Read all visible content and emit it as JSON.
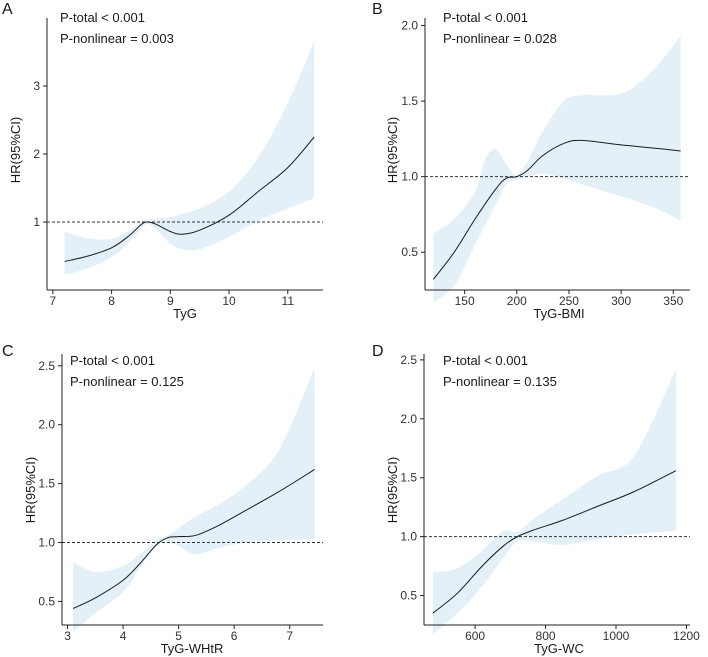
{
  "colors": {
    "band": "#e3f0f8",
    "line": "#1a1a1a",
    "axis": "#222222",
    "text": "#1a1a1a"
  },
  "chart_data": [
    {
      "panel": "A",
      "type": "line",
      "xlabel": "TyG",
      "ylabel": "HR(95%CI)",
      "annotations": [
        "P-total < 0.001",
        "P-nonlinear = 0.003"
      ],
      "x_ticks": [
        7,
        8,
        9,
        10,
        11
      ],
      "y_ticks": [
        1,
        2,
        3
      ],
      "xlim": [
        6.9,
        11.6
      ],
      "ylim": [
        0.0,
        4.0
      ],
      "reference_line": 1,
      "curve": [
        [
          7.2,
          0.42
        ],
        [
          7.6,
          0.5
        ],
        [
          8.0,
          0.62
        ],
        [
          8.3,
          0.8
        ],
        [
          8.5,
          0.96
        ],
        [
          8.6,
          1.0
        ],
        [
          8.75,
          0.97
        ],
        [
          9.0,
          0.86
        ],
        [
          9.2,
          0.82
        ],
        [
          9.5,
          0.88
        ],
        [
          10.0,
          1.1
        ],
        [
          10.5,
          1.45
        ],
        [
          11.0,
          1.8
        ],
        [
          11.45,
          2.25
        ]
      ],
      "ci_lower": [
        [
          7.2,
          0.22
        ],
        [
          7.6,
          0.32
        ],
        [
          8.0,
          0.48
        ],
        [
          8.3,
          0.7
        ],
        [
          8.5,
          0.9
        ],
        [
          8.6,
          0.97
        ],
        [
          8.75,
          0.9
        ],
        [
          9.0,
          0.68
        ],
        [
          9.2,
          0.6
        ],
        [
          9.5,
          0.6
        ],
        [
          10.0,
          0.78
        ],
        [
          10.5,
          1.02
        ],
        [
          11.0,
          1.2
        ],
        [
          11.45,
          1.35
        ]
      ],
      "ci_upper": [
        [
          7.2,
          0.86
        ],
        [
          7.6,
          0.76
        ],
        [
          8.0,
          0.75
        ],
        [
          8.3,
          0.88
        ],
        [
          8.5,
          1.0
        ],
        [
          8.6,
          1.03
        ],
        [
          8.75,
          1.05
        ],
        [
          9.0,
          1.07
        ],
        [
          9.2,
          1.12
        ],
        [
          9.5,
          1.2
        ],
        [
          10.0,
          1.45
        ],
        [
          10.5,
          1.95
        ],
        [
          11.0,
          2.75
        ],
        [
          11.45,
          3.65
        ]
      ]
    },
    {
      "panel": "B",
      "type": "line",
      "xlabel": "TyG-BMI",
      "ylabel": "HR(95%CI)",
      "annotations": [
        "P-total < 0.001",
        "P-nonlinear = 0.028"
      ],
      "x_ticks": [
        150,
        200,
        250,
        300,
        350
      ],
      "y_ticks": [
        0.5,
        1.0,
        1.5,
        2.0
      ],
      "x_tick_labels": [
        "150",
        "200",
        "250",
        "300",
        "350"
      ],
      "y_tick_labels": [
        "0.5",
        "1.0",
        "1.5",
        "2.0"
      ],
      "xlim": [
        112,
        366
      ],
      "ylim": [
        0.25,
        2.05
      ],
      "reference_line": 1,
      "curve": [
        [
          120,
          0.32
        ],
        [
          140,
          0.5
        ],
        [
          160,
          0.72
        ],
        [
          180,
          0.92
        ],
        [
          190,
          0.99
        ],
        [
          200,
          1.0
        ],
        [
          210,
          1.04
        ],
        [
          225,
          1.14
        ],
        [
          245,
          1.22
        ],
        [
          262,
          1.24
        ],
        [
          300,
          1.21
        ],
        [
          330,
          1.19
        ],
        [
          357,
          1.17
        ]
      ],
      "ci_lower": [
        [
          120,
          0.17
        ],
        [
          140,
          0.28
        ],
        [
          160,
          0.55
        ],
        [
          180,
          0.82
        ],
        [
          190,
          0.95
        ],
        [
          200,
          0.98
        ],
        [
          210,
          1.0
        ],
        [
          225,
          1.02
        ],
        [
          245,
          0.99
        ],
        [
          262,
          0.95
        ],
        [
          300,
          0.87
        ],
        [
          330,
          0.8
        ],
        [
          357,
          0.71
        ]
      ],
      "ci_upper": [
        [
          120,
          0.62
        ],
        [
          140,
          0.72
        ],
        [
          160,
          0.9
        ],
        [
          170,
          1.12
        ],
        [
          180,
          1.18
        ],
        [
          190,
          1.08
        ],
        [
          200,
          1.01
        ],
        [
          210,
          1.1
        ],
        [
          225,
          1.3
        ],
        [
          245,
          1.5
        ],
        [
          262,
          1.54
        ],
        [
          300,
          1.55
        ],
        [
          330,
          1.7
        ],
        [
          357,
          1.93
        ]
      ]
    },
    {
      "panel": "C",
      "type": "line",
      "xlabel": "TyG-WHtR",
      "ylabel": "HR(95%CI)",
      "annotations": [
        "P-total < 0.001",
        "P-nonlinear = 0.125"
      ],
      "x_ticks": [
        3,
        4,
        5,
        6,
        7
      ],
      "y_ticks": [
        0.5,
        1.0,
        1.5,
        2.0,
        2.5
      ],
      "y_tick_labels": [
        "0.5",
        "1.0",
        "1.5",
        "2.0",
        "2.5"
      ],
      "xlim": [
        2.9,
        7.6
      ],
      "ylim": [
        0.3,
        2.6
      ],
      "reference_line": 1,
      "curve": [
        [
          3.1,
          0.44
        ],
        [
          3.5,
          0.53
        ],
        [
          4.0,
          0.68
        ],
        [
          4.3,
          0.82
        ],
        [
          4.6,
          0.98
        ],
        [
          4.8,
          1.04
        ],
        [
          5.0,
          1.05
        ],
        [
          5.3,
          1.06
        ],
        [
          5.7,
          1.14
        ],
        [
          6.2,
          1.27
        ],
        [
          6.8,
          1.43
        ],
        [
          7.45,
          1.62
        ]
      ],
      "ci_lower": [
        [
          3.1,
          0.24
        ],
        [
          3.5,
          0.4
        ],
        [
          4.0,
          0.58
        ],
        [
          4.3,
          0.78
        ],
        [
          4.6,
          0.98
        ],
        [
          4.8,
          1.01
        ],
        [
          5.0,
          0.97
        ],
        [
          5.3,
          0.9
        ],
        [
          5.7,
          0.95
        ],
        [
          6.2,
          1.0
        ],
        [
          6.8,
          1.02
        ],
        [
          7.45,
          1.03
        ]
      ],
      "ci_upper": [
        [
          3.1,
          0.83
        ],
        [
          3.5,
          0.75
        ],
        [
          4.0,
          0.8
        ],
        [
          4.3,
          0.9
        ],
        [
          4.6,
          1.02
        ],
        [
          4.8,
          1.06
        ],
        [
          5.0,
          1.12
        ],
        [
          5.3,
          1.22
        ],
        [
          5.7,
          1.32
        ],
        [
          6.2,
          1.48
        ],
        [
          6.8,
          1.78
        ],
        [
          7.45,
          2.48
        ]
      ]
    },
    {
      "panel": "D",
      "type": "line",
      "xlabel": "TyG-WC",
      "ylabel": "HR(95%CI)",
      "annotations": [
        "P-total < 0.001",
        "P-nonlinear = 0.135"
      ],
      "x_ticks": [
        600,
        800,
        1000,
        1200
      ],
      "y_ticks": [
        0.5,
        1.0,
        1.5,
        2.0,
        2.5
      ],
      "y_tick_labels": [
        "0.5",
        "1.0",
        "1.5",
        "2.0",
        "2.5"
      ],
      "xlim": [
        455,
        1210
      ],
      "ylim": [
        0.25,
        2.55
      ],
      "reference_line": 1,
      "curve": [
        [
          480,
          0.35
        ],
        [
          550,
          0.52
        ],
        [
          620,
          0.75
        ],
        [
          680,
          0.92
        ],
        [
          720,
          1.0
        ],
        [
          770,
          1.06
        ],
        [
          850,
          1.14
        ],
        [
          950,
          1.26
        ],
        [
          1050,
          1.38
        ],
        [
          1170,
          1.56
        ]
      ],
      "ci_lower": [
        [
          480,
          0.17
        ],
        [
          550,
          0.35
        ],
        [
          620,
          0.58
        ],
        [
          680,
          0.82
        ],
        [
          720,
          0.96
        ],
        [
          770,
          0.96
        ],
        [
          850,
          0.93
        ],
        [
          950,
          0.98
        ],
        [
          1050,
          1.02
        ],
        [
          1170,
          1.05
        ]
      ],
      "ci_upper": [
        [
          480,
          0.7
        ],
        [
          550,
          0.73
        ],
        [
          620,
          0.88
        ],
        [
          680,
          1.05
        ],
        [
          720,
          1.04
        ],
        [
          770,
          1.16
        ],
        [
          850,
          1.32
        ],
        [
          950,
          1.52
        ],
        [
          1050,
          1.68
        ],
        [
          1170,
          2.42
        ]
      ]
    }
  ]
}
